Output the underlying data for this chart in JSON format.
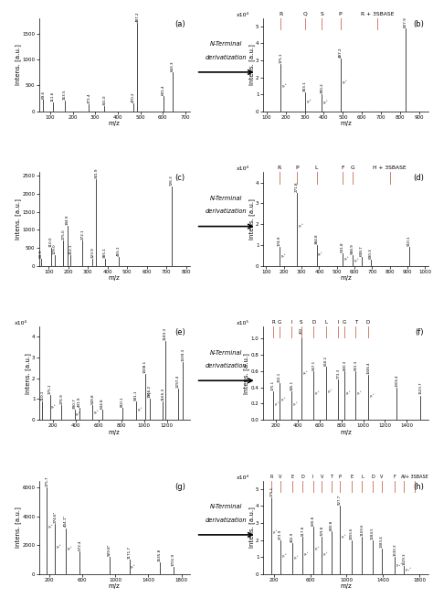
{
  "panels": {
    "a": {
      "title": "(a)",
      "xlabel": "m/z",
      "ylabel": "Intens. [a.u.]",
      "ylim": [
        0,
        1800
      ],
      "xlim": [
        50,
        720
      ],
      "yticks": [
        0,
        500,
        1000,
        1500
      ],
      "xticks": [
        100,
        200,
        300,
        400,
        500,
        600,
        700
      ],
      "peaks": [
        {
          "mz": 69.6,
          "intensity": 220,
          "label": "69.6"
        },
        {
          "mz": 111.6,
          "intensity": 180,
          "label": "111.6"
        },
        {
          "mz": 163.5,
          "intensity": 200,
          "label": "163.5"
        },
        {
          "mz": 271.4,
          "intensity": 130,
          "label": "271.4"
        },
        {
          "mz": 341.0,
          "intensity": 110,
          "label": "341.0"
        },
        {
          "mz": 470.2,
          "intensity": 160,
          "label": "470.2"
        },
        {
          "mz": 487.2,
          "intensity": 1700,
          "label": "487.2"
        },
        {
          "mz": 601.4,
          "intensity": 300,
          "label": "601.4"
        },
        {
          "mz": 643.3,
          "intensity": 750,
          "label": "643.3"
        }
      ]
    },
    "b": {
      "title": "(b)",
      "xlabel": "m/z",
      "ylabel": "Intens. [a.u.]",
      "ylim": [
        0,
        5.5
      ],
      "xlim": [
        80,
        950
      ],
      "yticks": [
        0,
        1,
        2,
        3,
        4,
        5
      ],
      "xticks": [
        100,
        200,
        300,
        400,
        500,
        600,
        700,
        800,
        900
      ],
      "yscale_label": "x10⁴",
      "amino_acids": [
        "R",
        "Q",
        "S",
        "P",
        "R + 3SBASE"
      ],
      "aa_positions": [
        175,
        303,
        390,
        487,
        680
      ],
      "peaks": [
        {
          "mz": 175.1,
          "intensity": 2.8,
          "label": "175.1",
          "sublabel": "y₁⁺"
        },
        {
          "mz": 303.1,
          "intensity": 1.1,
          "label": "303.1",
          "sublabel": "y₂⁺"
        },
        {
          "mz": 390.2,
          "intensity": 1.0,
          "label": "390.2",
          "sublabel": "y₃⁺"
        },
        {
          "mz": 487.2,
          "intensity": 3.1,
          "label": "487.2",
          "sublabel": "y₄⁺"
        },
        {
          "mz": 827.9,
          "intensity": 4.9,
          "label": "827.9",
          "sublabel": ""
        }
      ]
    },
    "c": {
      "title": "(c)",
      "xlabel": "m/z",
      "ylabel": "Intens. [a.u.]",
      "ylim": [
        0,
        2600
      ],
      "xlim": [
        50,
        820
      ],
      "yticks": [
        0,
        500,
        1000,
        1500,
        2000,
        2500
      ],
      "xticks": [
        100,
        200,
        300,
        400,
        500,
        600,
        700,
        800
      ],
      "peaks": [
        {
          "mz": 60.9,
          "intensity": 200,
          "label": "60.9"
        },
        {
          "mz": 110.0,
          "intensity": 500,
          "label": "110.0"
        },
        {
          "mz": 129.0,
          "intensity": 280,
          "label": "129.0"
        },
        {
          "mz": 175.0,
          "intensity": 700,
          "label": "175.0"
        },
        {
          "mz": 194.9,
          "intensity": 1100,
          "label": "194.9"
        },
        {
          "mz": 212.1,
          "intensity": 280,
          "label": "212.1"
        },
        {
          "mz": 272.1,
          "intensity": 700,
          "label": "272.1"
        },
        {
          "mz": 323.9,
          "intensity": 200,
          "label": "323.9"
        },
        {
          "mz": 341.9,
          "intensity": 2400,
          "label": "341.9"
        },
        {
          "mz": 385.1,
          "intensity": 200,
          "label": "385.1"
        },
        {
          "mz": 455.1,
          "intensity": 250,
          "label": "455.1"
        },
        {
          "mz": 726.3,
          "intensity": 2200,
          "label": "726.3"
        }
      ]
    },
    "d": {
      "title": "(d)",
      "xlabel": "m/z",
      "ylabel": "Intens. [a.u.]",
      "ylim": [
        0,
        4.5
      ],
      "xlim": [
        80,
        1020
      ],
      "yticks": [
        0,
        1,
        2,
        3,
        4
      ],
      "xticks": [
        100,
        200,
        300,
        400,
        500,
        600,
        700,
        800,
        900,
        1000
      ],
      "yscale_label": "x10⁴",
      "amino_acids": [
        "R",
        "P",
        "L",
        "F",
        "G",
        "H + 3SBASE"
      ],
      "aa_positions": [
        175,
        272,
        385,
        532,
        589,
        800
      ],
      "peaks": [
        {
          "mz": 174.9,
          "intensity": 0.9,
          "label": "174.9",
          "sublabel": "y₁⁺"
        },
        {
          "mz": 271.8,
          "intensity": 3.5,
          "label": "271.8",
          "sublabel": "y₂⁺"
        },
        {
          "mz": 384.8,
          "intensity": 1.0,
          "label": "384.8",
          "sublabel": "y₃⁺"
        },
        {
          "mz": 531.8,
          "intensity": 0.6,
          "label": "531.8",
          "sublabel": "y₄⁺"
        },
        {
          "mz": 588.9,
          "intensity": 0.5,
          "label": "588.9",
          "sublabel": "y₅⁺"
        },
        {
          "mz": 638.7,
          "intensity": 0.4,
          "label": "638.7",
          "sublabel": ""
        },
        {
          "mz": 690.3,
          "intensity": 0.3,
          "label": "690.3",
          "sublabel": ""
        },
        {
          "mz": 910.1,
          "intensity": 0.9,
          "label": "910.1",
          "sublabel": ""
        }
      ]
    },
    "e": {
      "title": "(e)",
      "xlabel": "m/z",
      "ylabel": "Intens. [a.u.]",
      "ylim": [
        0,
        4.5
      ],
      "xlim": [
        80,
        1400
      ],
      "yticks": [
        0,
        1,
        2,
        3,
        4
      ],
      "xticks": [
        200,
        400,
        600,
        800,
        1000,
        1200
      ],
      "yscale_label": "x10⁴",
      "peaks": [
        {
          "mz": 110.1,
          "intensity": 0.9,
          "label": "110.1"
        },
        {
          "mz": 175.1,
          "intensity": 1.2,
          "label": "175.1",
          "sublabel": "y₁⁺"
        },
        {
          "mz": 276.9,
          "intensity": 0.7,
          "label": "276.9"
        },
        {
          "mz": 390.7,
          "intensity": 0.5,
          "label": "390.7",
          "sublabel": "y₂⁺"
        },
        {
          "mz": 431.9,
          "intensity": 0.6,
          "label": "431.9"
        },
        {
          "mz": 549.8,
          "intensity": 0.7,
          "label": "549.8",
          "sublabel": "y₃⁺"
        },
        {
          "mz": 634.8,
          "intensity": 0.5,
          "label": "634.8"
        },
        {
          "mz": 810.1,
          "intensity": 0.6,
          "label": "810.1"
        },
        {
          "mz": 931.1,
          "intensity": 0.9,
          "label": "931.1",
          "sublabel": "y₅⁺"
        },
        {
          "mz": 1008.1,
          "intensity": 2.2,
          "label": "1008.1",
          "sublabel": "y₆⁺"
        },
        {
          "mz": 1046.2,
          "intensity": 1.0,
          "label": "1046.2"
        },
        {
          "mz": 1165.3,
          "intensity": 0.9,
          "label": "1165.3"
        },
        {
          "mz": 1183.3,
          "intensity": 3.8,
          "label": "1183.3"
        },
        {
          "mz": 1297.4,
          "intensity": 1.5,
          "label": "1297.4"
        },
        {
          "mz": 1339.3,
          "intensity": 2.8,
          "label": "1339.3"
        }
      ]
    },
    "f": {
      "title": "(f)",
      "xlabel": "m/z",
      "ylabel": "Intens. [a.u.]",
      "ylim": [
        0,
        1.15
      ],
      "xlim": [
        80,
        1600
      ],
      "yticks": [
        0,
        0.2,
        0.4,
        0.6,
        0.8,
        1.0
      ],
      "xticks": [
        200,
        400,
        600,
        800,
        1000,
        1200,
        1400
      ],
      "yscale_label": "x10⁵",
      "amino_acids": [
        "R",
        "G",
        "I",
        "S",
        "D",
        "L",
        "I",
        "G",
        "T",
        "D"
      ],
      "aa_positions": [
        175,
        232,
        345,
        432,
        547,
        660,
        773,
        830,
        931,
        1046
      ],
      "peaks": [
        {
          "mz": 175.1,
          "intensity": 0.35,
          "label": "175.1",
          "sublabel": "y₁⁺"
        },
        {
          "mz": 232.1,
          "intensity": 0.45,
          "label": "232.1",
          "sublabel": "y₂⁺"
        },
        {
          "mz": 345.1,
          "intensity": 0.35,
          "label": "345.1",
          "sublabel": "y₃⁺"
        },
        {
          "mz": 432.1,
          "intensity": 1.05,
          "label": "432",
          "sublabel": "y₄⁺"
        },
        {
          "mz": 547.1,
          "intensity": 0.6,
          "label": "547.1",
          "sublabel": "y₅⁺"
        },
        {
          "mz": 660.2,
          "intensity": 0.65,
          "label": "660.2",
          "sublabel": "y₆⁺"
        },
        {
          "mz": 773.3,
          "intensity": 0.5,
          "label": "773.3",
          "sublabel": ""
        },
        {
          "mz": 830.3,
          "intensity": 0.6,
          "label": "830.3",
          "sublabel": "y₇⁺"
        },
        {
          "mz": 931.3,
          "intensity": 0.6,
          "label": "931.3",
          "sublabel": "y₈⁺"
        },
        {
          "mz": 1046.4,
          "intensity": 0.55,
          "label": "1046.4",
          "sublabel": "y₉⁺"
        },
        {
          "mz": 1306.4,
          "intensity": 0.4,
          "label": "1306.4",
          "sublabel": ""
        },
        {
          "mz": 1523.7,
          "intensity": 0.3,
          "label": "1523.7",
          "sublabel": ""
        }
      ]
    },
    "g": {
      "title": "(g)",
      "xlabel": "m/z",
      "ylabel": "Intens. [a.u.]",
      "ylim": [
        0,
        6500
      ],
      "xlim": [
        80,
        1900
      ],
      "yticks": [
        0,
        2000,
        4000,
        6000
      ],
      "xticks": [
        200,
        600,
        1000,
        1400,
        1800
      ],
      "peaks": [
        {
          "mz": 175.7,
          "intensity": 6000,
          "label": "175.7",
          "sublabel": "y₁⁺"
        },
        {
          "mz": 274.6,
          "intensity": 3500,
          "label": "274.6²",
          "sublabel": "y₂⁺"
        },
        {
          "mz": 404.1,
          "intensity": 3200,
          "label": "404.1²",
          "sublabel": "y₃⁺"
        },
        {
          "mz": 572.4,
          "intensity": 1600,
          "label": "572.4"
        },
        {
          "mz": 929.8,
          "intensity": 1200,
          "label": "929.8²",
          "sublabel": ""
        },
        {
          "mz": 1171.7,
          "intensity": 1000,
          "label": "1171.7",
          "sublabel": "y₇⁺"
        },
        {
          "mz": 1535.8,
          "intensity": 800,
          "label": "1535.8"
        },
        {
          "mz": 1701.9,
          "intensity": 500,
          "label": "1701.9"
        }
      ]
    },
    "h": {
      "title": "(h)",
      "xlabel": "m/z",
      "ylabel": "Intens. [a.u.]",
      "ylim": [
        0,
        5.5
      ],
      "xlim": [
        80,
        1900
      ],
      "yticks": [
        0,
        1,
        2,
        3,
        4,
        5
      ],
      "xticks": [
        200,
        600,
        1000,
        1400,
        1800
      ],
      "yscale_label": "x10⁴",
      "amino_acids": [
        "R",
        "V",
        "E",
        "D",
        "I",
        "V",
        "T",
        "P",
        "E",
        "L",
        "D",
        "V",
        "F",
        "V",
        "A + 3SBASE"
      ],
      "aa_positions": [
        175,
        274,
        403,
        518,
        631,
        730,
        831,
        928,
        1056,
        1170,
        1285,
        1383,
        1530,
        1629,
        1750
      ],
      "peaks": [
        {
          "mz": 175.1,
          "intensity": 4.5,
          "label": "175.1",
          "sublabel": "y₁⁺"
        },
        {
          "mz": 273.9,
          "intensity": 2.0,
          "label": "273.9",
          "sublabel": "y₂⁺"
        },
        {
          "mz": 402.9,
          "intensity": 1.8,
          "label": "402.9",
          "sublabel": "y₃⁺"
        },
        {
          "mz": 517.8,
          "intensity": 2.2,
          "label": "517.8",
          "sublabel": "y₄⁺"
        },
        {
          "mz": 630.8,
          "intensity": 2.8,
          "label": "630.8",
          "sublabel": "y₅⁺"
        },
        {
          "mz": 729.8,
          "intensity": 2.2,
          "label": "729.8",
          "sublabel": "y₆⁺"
        },
        {
          "mz": 830.8,
          "intensity": 2.5,
          "label": "830.8",
          "sublabel": ""
        },
        {
          "mz": 927.7,
          "intensity": 4.0,
          "label": "927.7",
          "sublabel": "y₈⁺"
        },
        {
          "mz": 1055.6,
          "intensity": 2.0,
          "label": "1055.6",
          "sublabel": ""
        },
        {
          "mz": 1169.6,
          "intensity": 2.2,
          "label": "1169.6",
          "sublabel": ""
        },
        {
          "mz": 1284.5,
          "intensity": 2.0,
          "label": "1284.5",
          "sublabel": ""
        },
        {
          "mz": 1383.4,
          "intensity": 1.5,
          "label": "1383.4",
          "sublabel": ""
        },
        {
          "mz": 1530.3,
          "intensity": 1.0,
          "label": "1530.3",
          "sublabel": "y₁₃⁺"
        },
        {
          "mz": 1629.3,
          "intensity": 0.5,
          "label": "1629.3",
          "sublabel": "y₁₄⁺"
        }
      ]
    }
  }
}
